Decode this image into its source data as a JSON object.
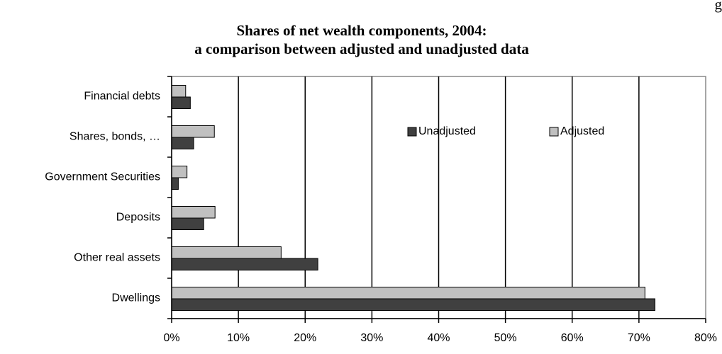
{
  "chart_data": {
    "type": "barh",
    "corner_label": "g",
    "title": [
      "Shares of net wealth components, 2004:",
      "a comparison between adjusted and unadjusted data"
    ],
    "categories": [
      "Financial debts",
      "Shares, bonds, …",
      "Government Securities",
      "Deposits",
      "Other real assets",
      "Dwellings"
    ],
    "series": [
      {
        "name": "Unadjusted",
        "color": "#404040",
        "values": [
          2.8,
          3.3,
          1.0,
          4.8,
          21.9,
          72.4
        ]
      },
      {
        "name": "Adjusted",
        "color": "#c0c0c0",
        "values": [
          2.1,
          6.4,
          2.3,
          6.5,
          16.4,
          70.9
        ]
      }
    ],
    "xlim": [
      0,
      80
    ],
    "xticks": [
      {
        "value": 0,
        "label": "0%"
      },
      {
        "value": 10,
        "label": "10%"
      },
      {
        "value": 20,
        "label": "20%"
      },
      {
        "value": 30,
        "label": "30%"
      },
      {
        "value": 40,
        "label": "40%"
      },
      {
        "value": 50,
        "label": "50%"
      },
      {
        "value": 60,
        "label": "60%"
      },
      {
        "value": 70,
        "label": "70%"
      },
      {
        "value": 80,
        "label": "80%"
      }
    ],
    "grid": true,
    "legend": "upper right"
  }
}
